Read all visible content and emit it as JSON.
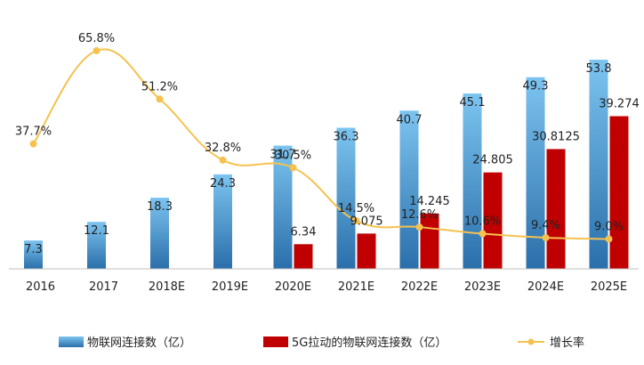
{
  "chart_data": {
    "type": "bar",
    "title": "",
    "xlabel": "",
    "ylabel": "",
    "categories": [
      "2016",
      "2017",
      "2018E",
      "2019E",
      "2020E",
      "2021E",
      "2022E",
      "2023E",
      "2024E",
      "2025E"
    ],
    "series": [
      {
        "name": "物联网连接数（亿）",
        "kind": "bar",
        "color": "#5aaae0",
        "color_dark": "#2a6faa",
        "values": [
          7.3,
          12.1,
          18.3,
          24.3,
          31.7,
          36.3,
          40.7,
          45.1,
          49.3,
          53.8
        ],
        "labels": [
          "7.3",
          "12.1",
          "18.3",
          "24.3",
          "31.7",
          "36.3",
          "40.7",
          "45.1",
          "49.3",
          "53.8"
        ]
      },
      {
        "name": "5G拉动的物联网连接数（亿）",
        "kind": "bar",
        "color": "#c00000",
        "values": [
          null,
          null,
          null,
          null,
          6.34,
          9.075,
          14.245,
          24.805,
          30.8125,
          39.274
        ],
        "labels": [
          "",
          "",
          "",
          "",
          "6.34",
          "9.075",
          "14.245",
          "24.805",
          "30.8125",
          "39.274"
        ]
      },
      {
        "name": "增长率",
        "kind": "line",
        "color": "#f5c250",
        "values": [
          37.7,
          65.8,
          51.2,
          32.8,
          30.5,
          14.5,
          12.6,
          10.6,
          9.4,
          9.0
        ],
        "labels": [
          "37.7%",
          "65.8%",
          "51.2%",
          "32.8%",
          "30.5%",
          "14.5%",
          "12.6%",
          "10.6%",
          "9.4%",
          "9.0%"
        ]
      }
    ],
    "ylim_bars": [
      0,
      60
    ],
    "ylim_line": [
      0,
      80
    ],
    "grid": false,
    "legend_position": "bottom"
  }
}
